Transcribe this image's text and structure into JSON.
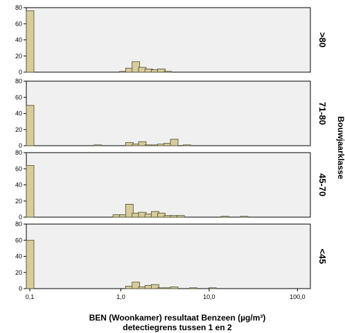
{
  "chart_data": {
    "type": "bar",
    "xlabel_line1": "BEN (Woonkamer) resultaat Benzeen (µg/m³)",
    "xlabel_line2": "detectiegrens tussen 1 en 2",
    "facet_label": "Bouwjaarklasse",
    "x_scale": "log",
    "x_ticks": [
      0.1,
      1.0,
      10.0,
      100.0
    ],
    "x_tick_labels": [
      "0,1",
      "1,0",
      "10,0",
      "100,0"
    ],
    "ylim": [
      0,
      80
    ],
    "y_ticks": [
      0,
      20,
      40,
      60,
      80
    ],
    "y_tick_labels": [
      "0",
      "20",
      "40",
      "60",
      "80"
    ],
    "colors": {
      "bar_fill": "#d8cc9c",
      "bar_stroke": "#4a4a2a",
      "panel_bg": "#f0f0f0"
    },
    "panels": [
      {
        "label": ">80",
        "bars": [
          {
            "x": 0.1,
            "y": 76
          },
          {
            "x": 1.07,
            "y": 1
          },
          {
            "x": 1.25,
            "y": 5
          },
          {
            "x": 1.48,
            "y": 13
          },
          {
            "x": 1.75,
            "y": 6
          },
          {
            "x": 2.07,
            "y": 4
          },
          {
            "x": 2.44,
            "y": 3
          },
          {
            "x": 2.88,
            "y": 4
          },
          {
            "x": 3.4,
            "y": 1
          }
        ]
      },
      {
        "label": "71-80",
        "bars": [
          {
            "x": 0.1,
            "y": 50
          },
          {
            "x": 0.55,
            "y": 1
          },
          {
            "x": 1.25,
            "y": 4
          },
          {
            "x": 1.48,
            "y": 2
          },
          {
            "x": 1.75,
            "y": 5
          },
          {
            "x": 2.07,
            "y": 1
          },
          {
            "x": 2.44,
            "y": 1
          },
          {
            "x": 2.88,
            "y": 2
          },
          {
            "x": 3.4,
            "y": 3
          },
          {
            "x": 4.02,
            "y": 8
          },
          {
            "x": 5.61,
            "y": 1
          }
        ]
      },
      {
        "label": "45-70",
        "bars": [
          {
            "x": 0.1,
            "y": 64
          },
          {
            "x": 0.9,
            "y": 3
          },
          {
            "x": 1.07,
            "y": 3
          },
          {
            "x": 1.25,
            "y": 16
          },
          {
            "x": 1.48,
            "y": 5
          },
          {
            "x": 1.75,
            "y": 6
          },
          {
            "x": 2.07,
            "y": 4
          },
          {
            "x": 2.44,
            "y": 7
          },
          {
            "x": 2.88,
            "y": 5
          },
          {
            "x": 3.4,
            "y": 2
          },
          {
            "x": 4.02,
            "y": 2
          },
          {
            "x": 4.75,
            "y": 2
          },
          {
            "x": 15.1,
            "y": 1
          },
          {
            "x": 24.9,
            "y": 1
          }
        ]
      },
      {
        "label": "<45",
        "bars": [
          {
            "x": 0.1,
            "y": 60
          },
          {
            "x": 1.25,
            "y": 3
          },
          {
            "x": 1.48,
            "y": 8
          },
          {
            "x": 1.75,
            "y": 2
          },
          {
            "x": 2.07,
            "y": 4
          },
          {
            "x": 2.44,
            "y": 5
          },
          {
            "x": 2.88,
            "y": 1
          },
          {
            "x": 3.4,
            "y": 1
          },
          {
            "x": 4.02,
            "y": 2
          },
          {
            "x": 6.62,
            "y": 1
          },
          {
            "x": 10.9,
            "y": 1
          }
        ]
      }
    ]
  }
}
